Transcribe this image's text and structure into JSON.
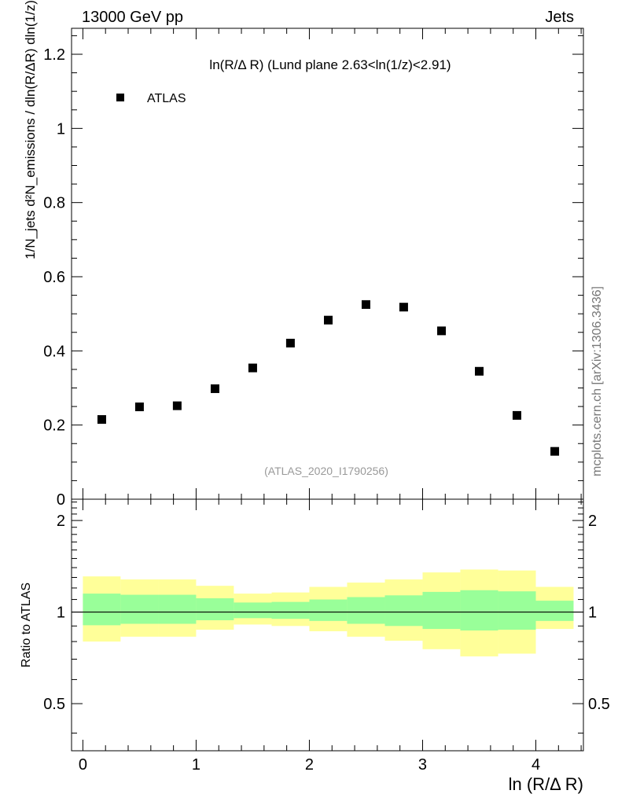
{
  "header": {
    "left": "13000 GeV pp",
    "right": "Jets"
  },
  "side_label": "mcplots.cern.ch [arXiv:1306.3436]",
  "watermark": "(ATLAS_2020_I1790256)",
  "chart_data": [
    {
      "type": "scatter",
      "title": "ln(R/Δ R) (Lund plane 2.63<ln(1/z)<2.91)",
      "ylabel": "1/N_jets d²N_emissions / dln(R/ΔR) dln(1/z)",
      "xlim": [
        -0.1,
        4.42
      ],
      "ylim": [
        0,
        1.27
      ],
      "yticks": [
        0,
        0.2,
        0.4,
        0.6,
        0.8,
        1,
        1.2
      ],
      "ytick_labels": [
        "0",
        "0.2",
        "0.4",
        "0.6",
        "0.8",
        "1",
        "1.2"
      ],
      "legend": {
        "position": "top-left",
        "entries": [
          "ATLAS"
        ]
      },
      "series": [
        {
          "name": "ATLAS",
          "x": [
            0.167,
            0.5,
            0.833,
            1.167,
            1.5,
            1.833,
            2.167,
            2.5,
            2.833,
            3.167,
            3.5,
            3.833,
            4.167
          ],
          "y": [
            0.215,
            0.249,
            0.252,
            0.298,
            0.354,
            0.421,
            0.483,
            0.525,
            0.518,
            0.454,
            0.345,
            0.226,
            0.129
          ]
        }
      ]
    },
    {
      "type": "area",
      "xlabel": "ln (R/Δ R)",
      "ylabel": "Ratio to ATLAS",
      "xlim": [
        -0.1,
        4.42
      ],
      "ylim": [
        0.35,
        2.35
      ],
      "log_y": true,
      "xticks": [
        0,
        1,
        2,
        3,
        4
      ],
      "xtick_labels": [
        "0",
        "1",
        "2",
        "3",
        "4"
      ],
      "yticks": [
        0.5,
        1,
        2
      ],
      "ytick_labels": [
        "0.5",
        "1",
        "2"
      ],
      "reference_line": 1,
      "bin_edges": [
        0,
        0.333,
        0.667,
        1.0,
        1.333,
        1.667,
        2.0,
        2.333,
        2.667,
        3.0,
        3.333,
        3.667,
        4.0,
        4.333
      ],
      "bands": [
        {
          "color": "#ffff99",
          "lo": [
            0.8,
            0.83,
            0.83,
            0.875,
            0.91,
            0.9,
            0.865,
            0.83,
            0.805,
            0.755,
            0.715,
            0.73,
            0.88
          ],
          "hi": [
            1.31,
            1.28,
            1.28,
            1.22,
            1.15,
            1.16,
            1.21,
            1.25,
            1.28,
            1.35,
            1.38,
            1.37,
            1.21
          ]
        },
        {
          "color": "#99ff99",
          "lo": [
            0.905,
            0.915,
            0.915,
            0.94,
            0.955,
            0.95,
            0.935,
            0.915,
            0.9,
            0.88,
            0.87,
            0.875,
            0.935
          ],
          "hi": [
            1.15,
            1.14,
            1.14,
            1.11,
            1.075,
            1.08,
            1.1,
            1.12,
            1.135,
            1.165,
            1.18,
            1.17,
            1.09
          ]
        }
      ]
    }
  ]
}
